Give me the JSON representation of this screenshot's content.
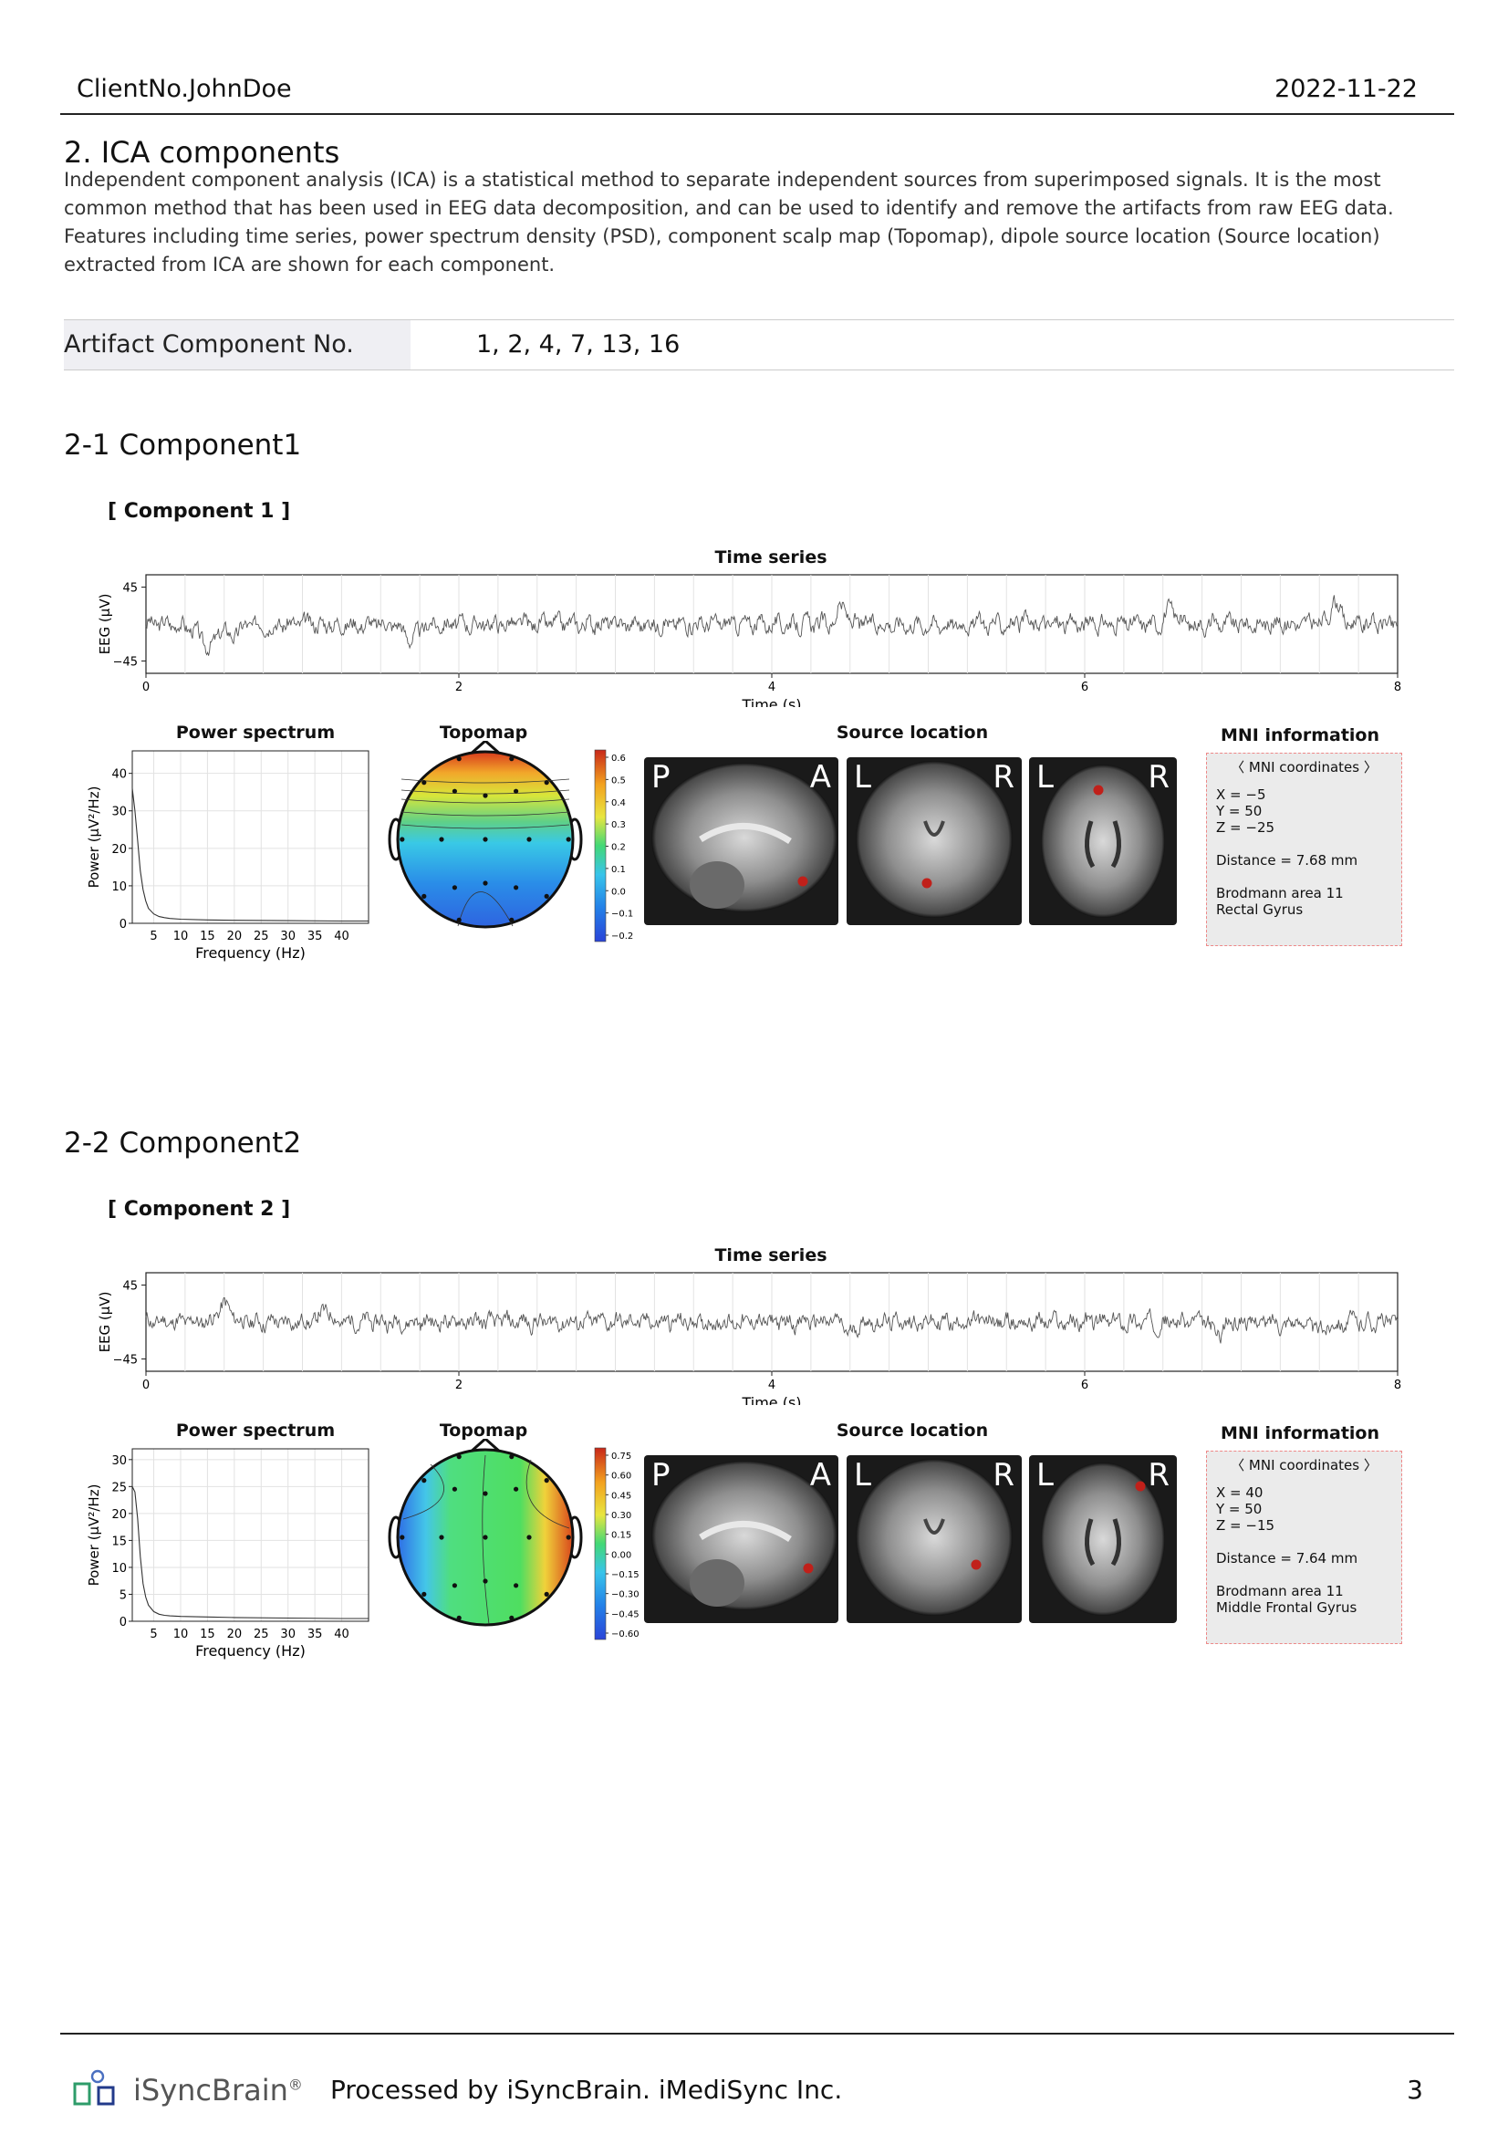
{
  "header": {
    "client": "ClientNo.JohnDoe",
    "date": "2022-11-22"
  },
  "section": {
    "title": "2. ICA components",
    "description": "Independent component analysis (ICA) is a statistical method to separate independent sources from superimposed signals. It is the most common method that has been used in EEG data decomposition, and can be used to identify and remove the artifacts from raw EEG data. Features including time series, power spectrum density (PSD), component scalp map (Topomap), dipole source location (Source location) extracted from ICA are shown for each component."
  },
  "artifact": {
    "label": "Artifact Component No.",
    "value": "1, 2, 4, 7, 13, 16"
  },
  "components": [
    {
      "title": "2-1 Component1",
      "subtitle": "[ Component 1 ]",
      "time_series_title": "Time series",
      "time_ylabel": "EEG (μV)",
      "time_xlabel": "Time (s)",
      "time_yticks": [
        "45",
        "−45"
      ],
      "time_xticks": [
        "0",
        "2",
        "4",
        "6",
        "8"
      ],
      "psd_title": "Power spectrum",
      "psd_ylabel": "Power (μV²/Hz)",
      "psd_xlabel": "Frequency (Hz)",
      "psd_yticks": [
        "40",
        "30",
        "20",
        "10",
        "0"
      ],
      "psd_xticks": [
        "5",
        "10",
        "15",
        "20",
        "25",
        "30",
        "35",
        "40"
      ],
      "topomap_title": "Topomap",
      "colorbar_ticks": [
        "0.6",
        "0.5",
        "0.4",
        "0.3",
        "0.2",
        "0.1",
        "0.0",
        "−0.1",
        "−0.2"
      ],
      "source_title": "Source location",
      "brain_letters": [
        "P",
        "A",
        "L",
        "R",
        "L",
        "R"
      ],
      "mni_title": "MNI information",
      "mni": {
        "header": "〈 MNI coordinates 〉",
        "x": "X = −5",
        "y": "Y = 50",
        "z": "Z = −25",
        "distance": "Distance = 7.68 mm",
        "area": "Brodmann area 11",
        "region": "Rectal Gyrus"
      }
    },
    {
      "title": "2-2 Component2",
      "subtitle": "[ Component 2 ]",
      "time_series_title": "Time series",
      "time_ylabel": "EEG (μV)",
      "time_xlabel": "Time (s)",
      "time_yticks": [
        "45",
        "−45"
      ],
      "time_xticks": [
        "0",
        "2",
        "4",
        "6",
        "8"
      ],
      "psd_title": "Power spectrum",
      "psd_ylabel": "Power (μV²/Hz)",
      "psd_xlabel": "Frequency (Hz)",
      "psd_yticks": [
        "30",
        "25",
        "20",
        "15",
        "10",
        "5",
        "0"
      ],
      "psd_xticks": [
        "5",
        "10",
        "15",
        "20",
        "25",
        "30",
        "35",
        "40"
      ],
      "topomap_title": "Topomap",
      "colorbar_ticks": [
        "0.75",
        "0.60",
        "0.45",
        "0.30",
        "0.15",
        "0.00",
        "−0.15",
        "−0.30",
        "−0.45",
        "−0.60"
      ],
      "source_title": "Source location",
      "brain_letters": [
        "P",
        "A",
        "L",
        "R",
        "L",
        "R"
      ],
      "mni_title": "MNI information",
      "mni": {
        "header": "〈 MNI coordinates 〉",
        "x": "X = 40",
        "y": "Y = 50",
        "z": "Z = −15",
        "distance": "Distance = 7.64 mm",
        "area": "Brodmann area 11",
        "region": "Middle Frontal Gyrus"
      }
    }
  ],
  "chart_data": [
    {
      "type": "line",
      "title": "Time series",
      "xlabel": "Time (s)",
      "ylabel": "EEG (μV)",
      "xlim": [
        0,
        8
      ],
      "ylim": [
        -60,
        60
      ],
      "series": [
        {
          "name": "Component 1",
          "seed": 3,
          "events": [
            [
              0.45,
              -35,
              0.12
            ],
            [
              0.48,
              25,
              0.05
            ],
            [
              1.7,
              -18,
              0.06
            ],
            [
              4.45,
              22,
              0.04
            ],
            [
              7.6,
              25,
              0.05
            ],
            [
              6.55,
              18,
              0.05
            ]
          ]
        }
      ]
    },
    {
      "type": "line",
      "title": "Power spectrum",
      "xlabel": "Frequency (Hz)",
      "ylabel": "Power (μV²/Hz)",
      "xlim": [
        1,
        45
      ],
      "ylim": [
        0,
        46
      ],
      "x": [
        1,
        1.5,
        2,
        2.5,
        3,
        3.5,
        4,
        5,
        6,
        7,
        8,
        10,
        15,
        20,
        30,
        40,
        45
      ],
      "values": [
        36,
        30,
        22,
        14,
        9,
        6,
        4,
        2.5,
        1.8,
        1.5,
        1.3,
        1.1,
        0.9,
        0.8,
        0.7,
        0.6,
        0.6
      ]
    },
    {
      "type": "line",
      "title": "Time series",
      "xlabel": "Time (s)",
      "ylabel": "EEG (μV)",
      "xlim": [
        0,
        8
      ],
      "ylim": [
        -60,
        60
      ],
      "series": [
        {
          "name": "Component 2",
          "seed": 11,
          "events": [
            [
              0.5,
              20,
              0.06
            ],
            [
              1.15,
              15,
              0.05
            ],
            [
              4.5,
              -15,
              0.04
            ],
            [
              6.85,
              -14,
              0.05
            ],
            [
              7.5,
              -12,
              0.05
            ]
          ]
        }
      ]
    },
    {
      "type": "line",
      "title": "Power spectrum",
      "xlabel": "Frequency (Hz)",
      "ylabel": "Power (μV²/Hz)",
      "xlim": [
        1,
        45
      ],
      "ylim": [
        0,
        32
      ],
      "x": [
        1,
        1.5,
        2,
        2.5,
        3,
        3.5,
        4,
        5,
        6,
        7,
        8,
        10,
        15,
        20,
        30,
        40,
        45
      ],
      "values": [
        25,
        24,
        19,
        12,
        7,
        4.5,
        3,
        1.8,
        1.3,
        1.1,
        1,
        0.9,
        0.8,
        0.7,
        0.6,
        0.5,
        0.5
      ]
    }
  ]
}
